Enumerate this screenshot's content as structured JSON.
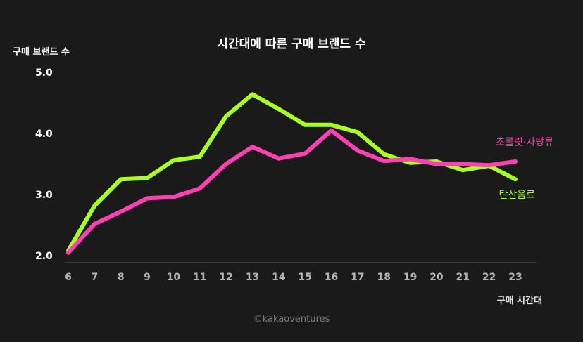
{
  "chart_data": {
    "type": "line",
    "title": "시간대에 따른 구매 브랜드 수",
    "ylabel": "구매 브랜드 수",
    "xlabel": "구매 시간대",
    "x": [
      6,
      7,
      8,
      9,
      10,
      11,
      12,
      13,
      14,
      15,
      16,
      17,
      18,
      19,
      20,
      21,
      22,
      23
    ],
    "ylim": [
      2.0,
      5.0
    ],
    "yticks": [
      "2.0",
      "3.0",
      "4.0",
      "5.0"
    ],
    "grid": false,
    "series": [
      {
        "name": "탄산음료",
        "color": "#aaff22",
        "values": [
          2.08,
          2.82,
          3.25,
          3.27,
          3.56,
          3.62,
          4.28,
          4.64,
          4.4,
          4.14,
          4.14,
          4.02,
          3.66,
          3.52,
          3.54,
          3.4,
          3.47,
          3.25
        ]
      },
      {
        "name": "초콜릿·사탕류",
        "color": "#ff3fb4",
        "values": [
          2.05,
          2.52,
          2.72,
          2.94,
          2.96,
          3.1,
          3.5,
          3.78,
          3.59,
          3.67,
          4.05,
          3.72,
          3.55,
          3.58,
          3.5,
          3.5,
          3.48,
          3.54
        ]
      }
    ],
    "credit": "©kakaoventures"
  }
}
